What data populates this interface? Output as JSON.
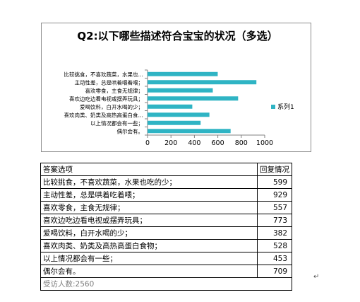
{
  "chart_data": {
    "type": "bar",
    "orientation": "horizontal",
    "title": "Q2:以下哪些描述符合宝宝的状况（多选）",
    "categories": [
      "比较挑食，不喜欢蔬菜，水果也…",
      "主动性差，总是哄着喂着喂；",
      "喜欢零食，主食无规律；",
      "喜欢边吃边看电视或摆弄玩具；",
      "爱喝饮料，白开水喝的少；",
      "喜欢肉类、奶类及高热高蛋白食…",
      "以上情况都会有一些；",
      "偶尔会有。"
    ],
    "series": [
      {
        "name": "系列1",
        "values": [
          599,
          929,
          557,
          773,
          382,
          528,
          453,
          709
        ]
      }
    ],
    "xlim": [
      0,
      1000
    ],
    "xticks": [
      0,
      200,
      400,
      600,
      800,
      1000
    ],
    "legend_position": "right",
    "colors": {
      "bar": "#2fb4c4",
      "axis": "#808080"
    }
  },
  "table": {
    "headers": [
      "答案选项",
      "回复情况"
    ],
    "rows": [
      {
        "answer": "比较挑食，不喜欢蔬菜，水果也吃的少；",
        "count": 599
      },
      {
        "answer": "主动性差，总是哄着吃着喂；",
        "count": 929
      },
      {
        "answer": "喜欢零食，主食无规律；",
        "count": 557
      },
      {
        "answer": "喜欢边吃边看电视或摆弄玩具；",
        "count": 773
      },
      {
        "answer": "爱喝饮料，白开水喝的少；",
        "count": 382
      },
      {
        "answer": "喜欢肉类、奶类及高热高蛋白食物；",
        "count": 528
      },
      {
        "answer": "以上情况都会有一些；",
        "count": 453
      },
      {
        "answer": "偶尔会有。",
        "count": 709
      }
    ],
    "footer": "受访人数:2560"
  },
  "paragraph_mark": "↵"
}
